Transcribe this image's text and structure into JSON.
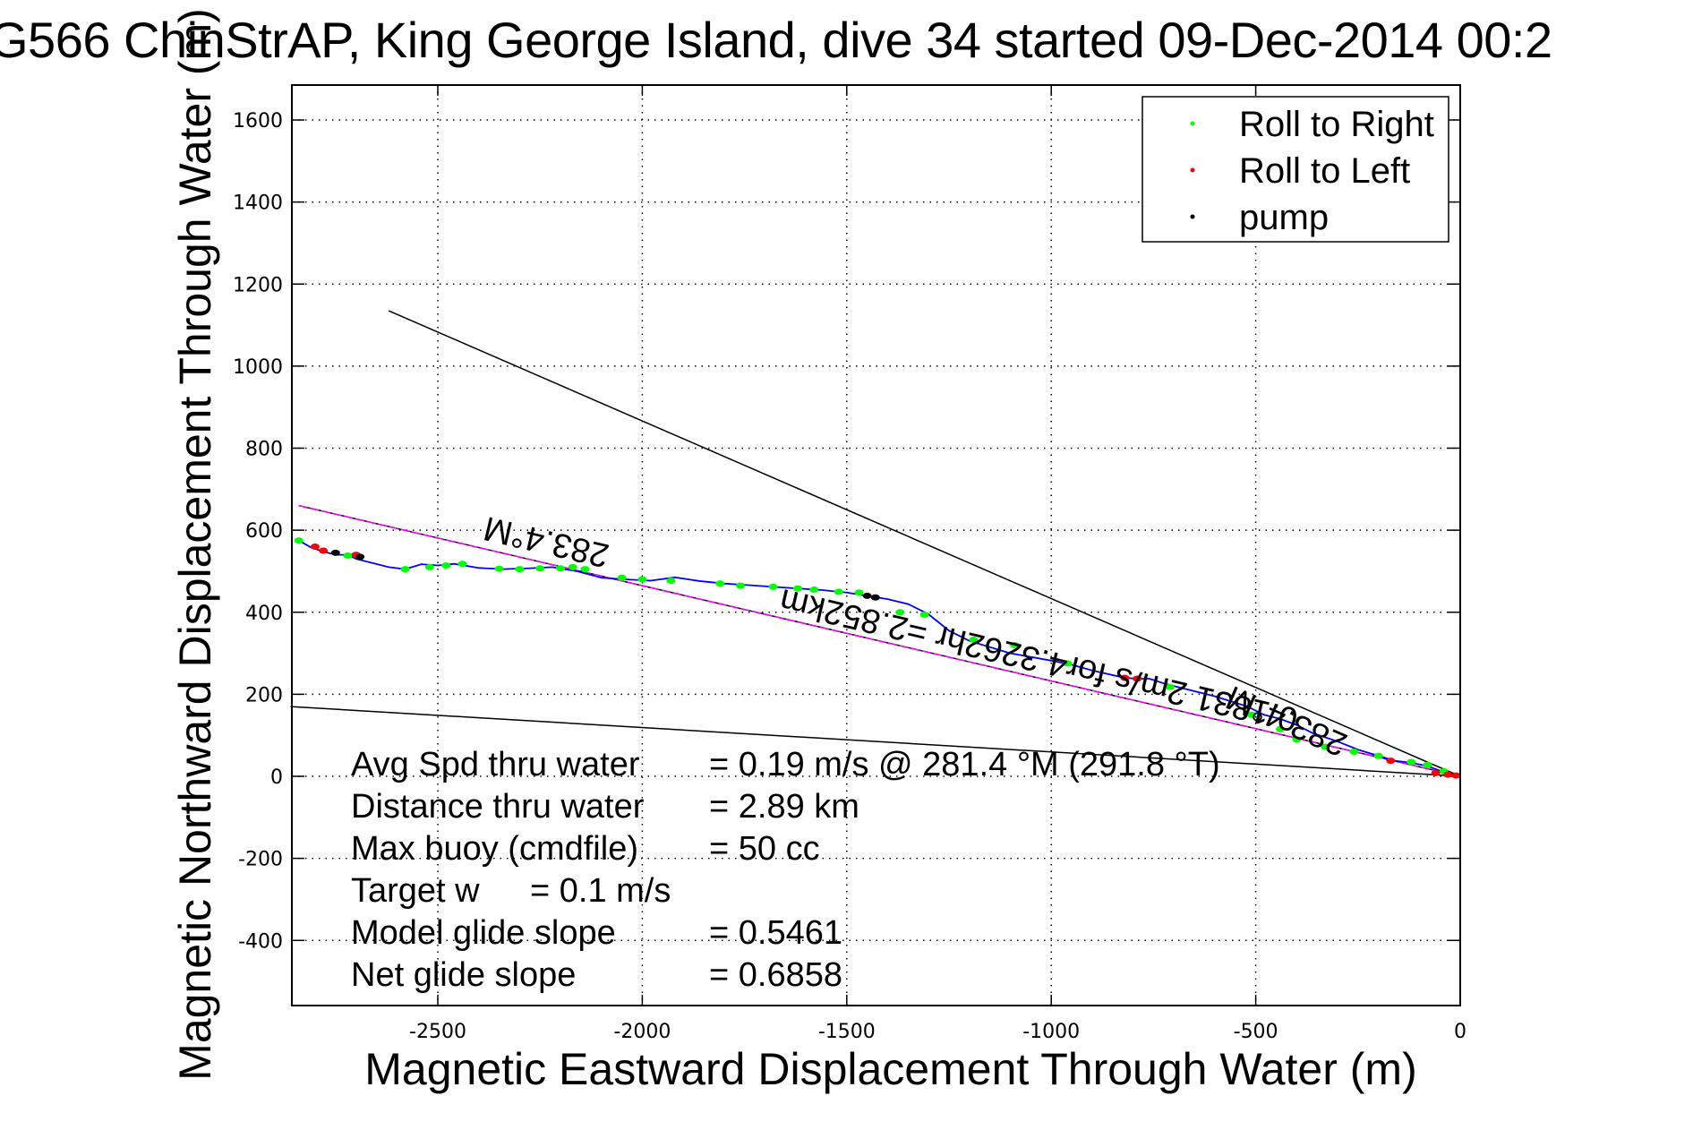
{
  "chart_data": {
    "type": "scatter",
    "title": "G566 ChinStrAP, King George Island, dive 34 started 09-Dec-2014 00:2",
    "xlabel": "Magnetic Eastward Displacement Through Water (m)",
    "ylabel": "Magnetic Northward Displacement Through Water (m)",
    "xlim": [
      -2860,
      0
    ],
    "ylim": [
      -550,
      1680
    ],
    "grid": true,
    "x_ticks": [
      -2500,
      -2000,
      -1500,
      -1000,
      -500,
      0
    ],
    "y_ticks": [
      1600,
      1400,
      1200,
      1000,
      800,
      600,
      400,
      200,
      0,
      -200,
      -400
    ],
    "legend": {
      "placement": "top-right",
      "entries": [
        {
          "label": "Roll to Right",
          "color": "#00ff00"
        },
        {
          "label": "Roll to Left",
          "color": "#ff0000"
        },
        {
          "label": "pump",
          "color": "#000000"
        }
      ]
    },
    "series": [
      {
        "name": "track",
        "color": "#0000ff",
        "x": [
          -2840,
          -2810,
          -2780,
          -2750,
          -2720,
          -2700,
          -2660,
          -2620,
          -2580,
          -2540,
          -2500,
          -2460,
          -2400,
          -2340,
          -2280,
          -2220,
          -2160,
          -2100,
          -2040,
          -1980,
          -1920,
          -1860,
          -1800,
          -1740,
          -1680,
          -1620,
          -1560,
          -1500,
          -1450,
          -1400,
          -1350,
          -1300,
          -1250,
          -1200,
          -1100,
          -1000,
          -950,
          -900,
          -820,
          -790,
          -760,
          -720,
          -680,
          -600,
          -520,
          -480,
          -440,
          -400,
          -360,
          -300,
          -250,
          -200,
          -160,
          -120,
          -80,
          -40,
          0
        ],
        "y": [
          575,
          558,
          548,
          540,
          540,
          530,
          520,
          510,
          505,
          517,
          514,
          518,
          508,
          505,
          507,
          510,
          500,
          484,
          480,
          477,
          485,
          476,
          470,
          466,
          462,
          458,
          454,
          448,
          440,
          432,
          420,
          395,
          355,
          330,
          300,
          282,
          272,
          258,
          240,
          238,
          238,
          225,
          215,
          195,
          170,
          150,
          140,
          125,
          105,
          85,
          65,
          50,
          38,
          33,
          25,
          10,
          0
        ]
      },
      {
        "name": "Roll to Right",
        "color": "#00ff00",
        "x": [
          -2840,
          -2720,
          -2580,
          -2520,
          -2480,
          -2440,
          -2350,
          -2300,
          -2250,
          -2200,
          -2170,
          -2140,
          -2050,
          -2000,
          -1930,
          -1810,
          -1760,
          -1680,
          -1620,
          -1580,
          -1520,
          -1470,
          -1370,
          -1310,
          -1190,
          -1090,
          -960,
          -710,
          -510,
          -440,
          -400,
          -330,
          -260,
          -200,
          -120,
          -80,
          -40
        ],
        "y": [
          575,
          538,
          505,
          510,
          514,
          518,
          506,
          505,
          507,
          507,
          510,
          505,
          484,
          480,
          477,
          470,
          465,
          462,
          458,
          455,
          450,
          448,
          400,
          394,
          333,
          320,
          275,
          218,
          150,
          115,
          90,
          72,
          60,
          50,
          35,
          28,
          12
        ]
      },
      {
        "name": "Roll to Left",
        "color": "#ff0000",
        "x": [
          -2800,
          -2780,
          -2700,
          -820,
          -790,
          -170,
          -60,
          -30,
          -10
        ],
        "y": [
          560,
          550,
          540,
          240,
          238,
          38,
          8,
          4,
          2
        ]
      },
      {
        "name": "pump",
        "color": "#000000",
        "x": [
          -2750,
          -2690,
          -1450,
          -1430
        ],
        "y": [
          545,
          535,
          440,
          436
        ]
      }
    ],
    "reference_lines": [
      {
        "name": "heading-line-upper",
        "color": "#000000",
        "from": [
          -2620,
          1135
        ],
        "to": [
          0,
          0
        ]
      },
      {
        "name": "heading-line-lower",
        "color": "#000000",
        "from": [
          -2860,
          170
        ],
        "to": [
          0,
          0
        ]
      },
      {
        "name": "net-displacement-line-black",
        "color": "#000000",
        "from": [
          -2840,
          660
        ],
        "to": [
          0,
          0
        ]
      },
      {
        "name": "net-displacement-line-magenta",
        "color": "#ff00ff",
        "from": [
          -2840,
          660
        ],
        "to": [
          0,
          0
        ]
      }
    ],
    "annotations": {
      "heading_label_left": "283.4°M",
      "heading_label_right": "283.4°M",
      "speed_distance_label": "0.1831 2m/s for4.3262hr =2.852km",
      "info_lines": [
        {
          "label": "Avg Spd thru water",
          "value": "=  0.19 m/s @ 281.4 °M (291.8 °T)"
        },
        {
          "label": "Distance thru water",
          "value": "=  2.89 km"
        },
        {
          "label": "Max buoy (cmdfile)",
          "value": "= 50 cc"
        },
        {
          "label": "Target w",
          "value": "= 0.1 m/s"
        },
        {
          "label": "Model glide slope",
          "value": "= 0.5461"
        },
        {
          "label": "Net glide slope",
          "value": "= 0.6858"
        }
      ]
    }
  }
}
